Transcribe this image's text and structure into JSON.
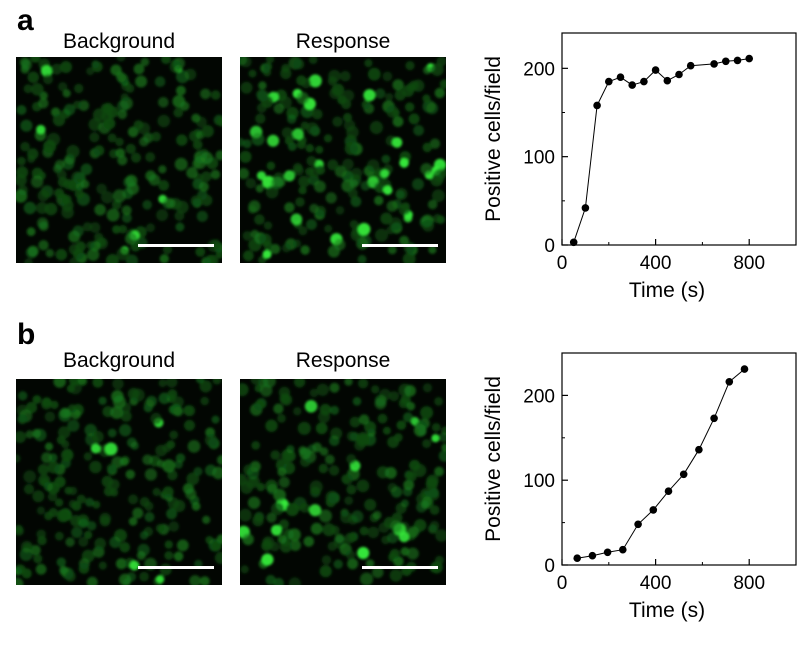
{
  "panels": [
    {
      "letter": "a",
      "images": [
        {
          "title": "Background",
          "tone": "dim"
        },
        {
          "title": "Response",
          "tone": "bright"
        }
      ],
      "scale_bar": true
    },
    {
      "letter": "b",
      "images": [
        {
          "title": "Background",
          "tone": "dim"
        },
        {
          "title": "Response",
          "tone": "bright"
        }
      ],
      "scale_bar": true
    }
  ],
  "colors": {
    "cell_dim": "#0d4a12",
    "cell_mid": "#1a7a1e",
    "cell_bright": "#35e83a",
    "background": "#020602",
    "scale_bar": "#ffffff",
    "line": "#000000"
  },
  "chart_data": [
    {
      "panel": "a",
      "type": "line",
      "xlabel": "Time (s)",
      "ylabel": "Positive cells/field",
      "xlim": [
        0,
        1000
      ],
      "ylim": [
        0,
        240
      ],
      "xticks": [
        0,
        400,
        800
      ],
      "yticks": [
        0,
        100,
        200
      ],
      "grid": false,
      "x": [
        50,
        100,
        150,
        200,
        250,
        300,
        350,
        400,
        450,
        500,
        550,
        650,
        700,
        750,
        800
      ],
      "y": [
        3,
        42,
        158,
        185,
        190,
        181,
        185,
        198,
        186,
        193,
        203,
        205,
        208,
        209,
        211
      ]
    },
    {
      "panel": "b",
      "type": "line",
      "xlabel": "Time (s)",
      "ylabel": "Positive cells/field",
      "xlim": [
        0,
        1000
      ],
      "ylim": [
        0,
        250
      ],
      "xticks": [
        0,
        400,
        800
      ],
      "yticks": [
        0,
        100,
        200
      ],
      "grid": false,
      "x": [
        65,
        130,
        195,
        260,
        325,
        390,
        455,
        520,
        585,
        650,
        715,
        780
      ],
      "y": [
        8,
        11,
        15,
        18,
        48,
        65,
        87,
        107,
        136,
        173,
        216,
        231
      ]
    }
  ]
}
